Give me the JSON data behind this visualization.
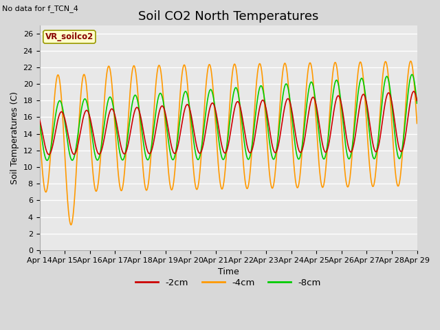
{
  "title": "Soil CO2 North Temperatures",
  "no_data_label": "No data for f_TCN_4",
  "ylabel": "Soil Temperatures (C)",
  "xlabel": "Time",
  "legend_label": "VR_soilco2",
  "ylim": [
    0,
    27
  ],
  "yticks": [
    0,
    2,
    4,
    6,
    8,
    10,
    12,
    14,
    16,
    18,
    20,
    22,
    24,
    26
  ],
  "x_labels": [
    "Apr 14",
    "Apr 15",
    "Apr 16",
    "Apr 17",
    "Apr 18",
    "Apr 19",
    "Apr 20",
    "Apr 21",
    "Apr 22",
    "Apr 23",
    "Apr 24",
    "Apr 25",
    "Apr 26",
    "Apr 27",
    "Apr 28",
    "Apr 29"
  ],
  "color_2cm": "#cc0000",
  "color_4cm": "#ff9900",
  "color_8cm": "#00cc00",
  "legend_2cm": "-2cm",
  "legend_4cm": "-4cm",
  "legend_8cm": "-8cm",
  "bg_color": "#d8d8d8",
  "plot_bg": "#e8e8e8",
  "title_fontsize": 13,
  "label_fontsize": 9,
  "tick_fontsize": 8,
  "line_width": 1.2
}
